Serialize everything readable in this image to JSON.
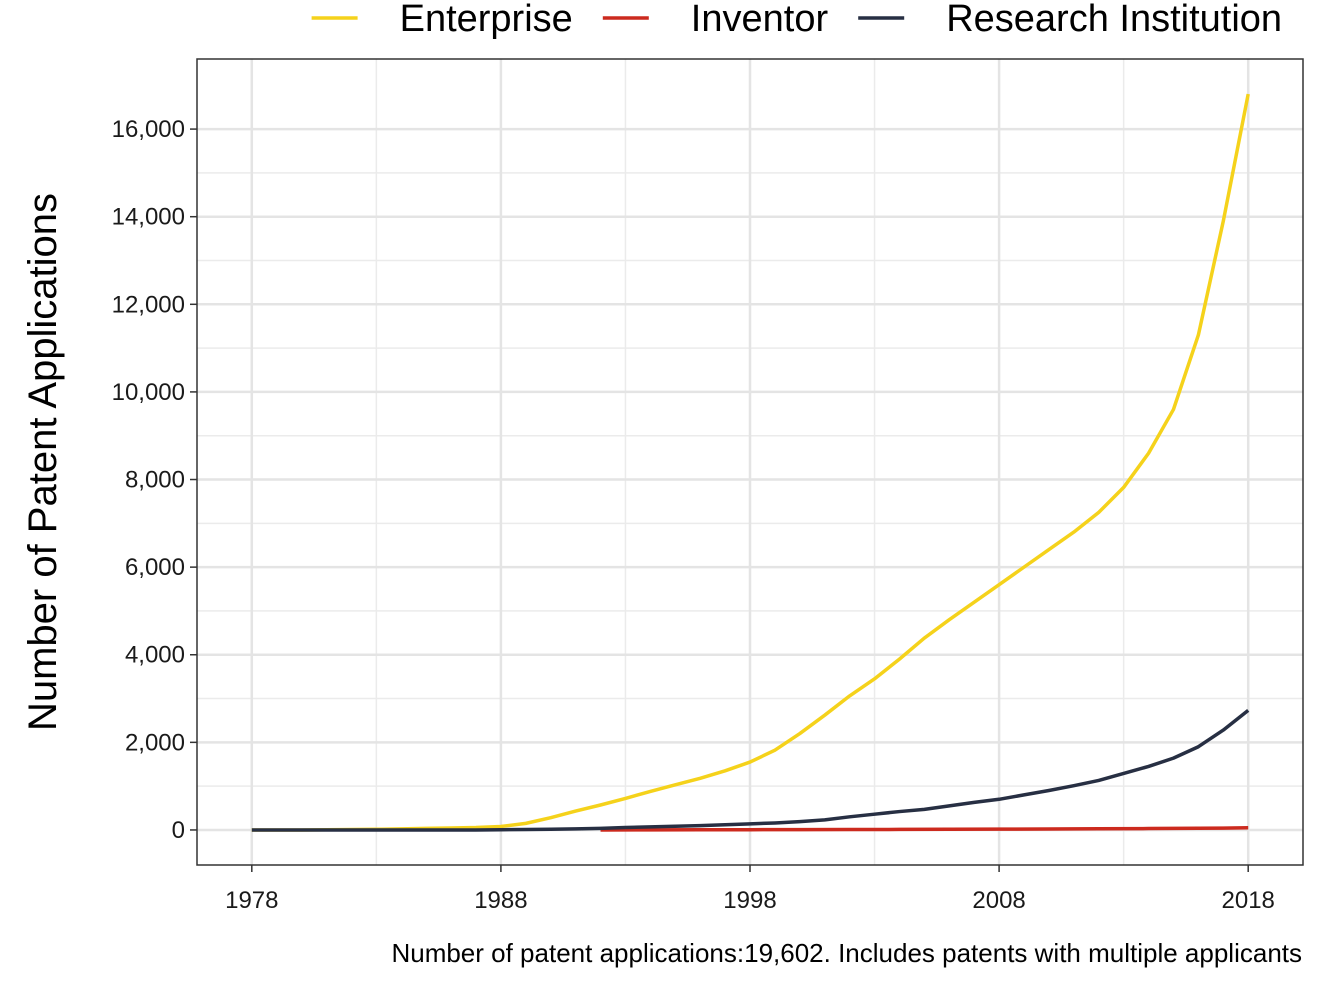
{
  "chart_data": {
    "type": "line",
    "title": "",
    "xlabel": "",
    "ylabel": "Number of Patent Applications",
    "caption": "Number of patent applications:19,602. Includes patents with multiple applicants",
    "xlim": [
      1975.8,
      2020.2
    ],
    "ylim": [
      -800,
      17600
    ],
    "x_ticks": [
      1978,
      1988,
      1998,
      2008,
      2018
    ],
    "x_tick_labels": [
      "1978",
      "1988",
      "1998",
      "2008",
      "2018"
    ],
    "y_ticks": [
      0,
      2000,
      4000,
      6000,
      8000,
      10000,
      12000,
      14000,
      16000
    ],
    "y_tick_labels": [
      "0",
      "2,000",
      "4,000",
      "6,000",
      "8,000",
      "10,000",
      "12,000",
      "14,000",
      "16,000"
    ],
    "grid": true,
    "legend_position": "top",
    "series": [
      {
        "name": "Enterprise",
        "color": "#f5d21b",
        "x": [
          1978,
          1979,
          1980,
          1981,
          1982,
          1983,
          1984,
          1985,
          1986,
          1987,
          1988,
          1989,
          1990,
          1991,
          1992,
          1993,
          1994,
          1995,
          1996,
          1997,
          1998,
          1999,
          2000,
          2001,
          2002,
          2003,
          2004,
          2005,
          2006,
          2007,
          2008,
          2009,
          2010,
          2011,
          2012,
          2013,
          2014,
          2015,
          2016,
          2017,
          2018
        ],
        "y": [
          0,
          0,
          0,
          5,
          10,
          15,
          25,
          35,
          45,
          55,
          80,
          150,
          280,
          430,
          570,
          720,
          880,
          1030,
          1180,
          1350,
          1550,
          1820,
          2200,
          2620,
          3060,
          3450,
          3900,
          4380,
          4800,
          5200,
          5600,
          6000,
          6400,
          6800,
          7250,
          7820,
          8600,
          9600,
          11300,
          13900,
          16800
        ]
      },
      {
        "name": "Inventor",
        "color": "#cc2a1e",
        "x": [
          1992,
          1994,
          1996,
          1998,
          2000,
          2002,
          2004,
          2006,
          2008,
          2010,
          2012,
          2014,
          2016,
          2017,
          2018
        ],
        "y": [
          0,
          2,
          4,
          6,
          8,
          10,
          12,
          15,
          18,
          22,
          27,
          32,
          38,
          42,
          50
        ]
      },
      {
        "name": "Research Institution",
        "color": "#272f43",
        "x": [
          1978,
          1979,
          1980,
          1981,
          1982,
          1983,
          1984,
          1985,
          1986,
          1987,
          1988,
          1989,
          1990,
          1991,
          1992,
          1993,
          1994,
          1995,
          1996,
          1997,
          1998,
          1999,
          2000,
          2001,
          2002,
          2003,
          2004,
          2005,
          2006,
          2007,
          2008,
          2009,
          2010,
          2011,
          2012,
          2013,
          2014,
          2015,
          2016,
          2017,
          2018
        ],
        "y": [
          0,
          0,
          0,
          0,
          0,
          0,
          0,
          0,
          0,
          0,
          5,
          10,
          15,
          25,
          35,
          55,
          70,
          85,
          100,
          120,
          140,
          160,
          190,
          230,
          300,
          360,
          420,
          470,
          550,
          630,
          700,
          800,
          900,
          1010,
          1130,
          1290,
          1450,
          1640,
          1900,
          2280,
          2730
        ]
      }
    ]
  }
}
